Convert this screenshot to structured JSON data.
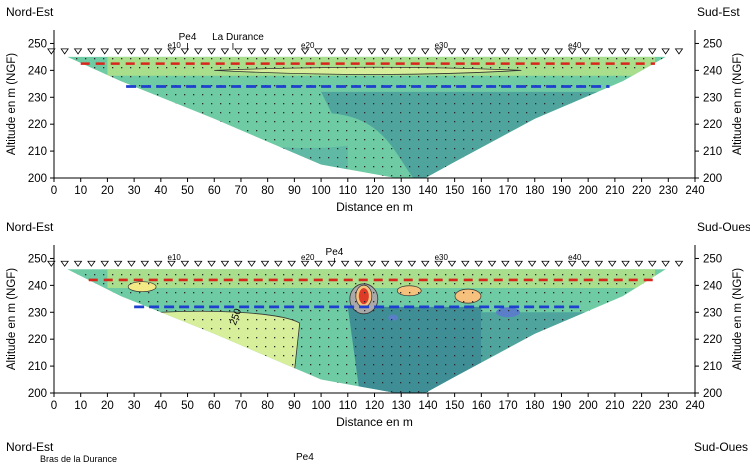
{
  "chart_data": [
    {
      "type": "heatmap",
      "left_label": "Nord-Est",
      "right_label": "Sud-Est",
      "xlabel": "Distance en m",
      "ylabel": "Altitude en m (NGF)",
      "xlim": [
        0,
        240
      ],
      "ylim": [
        200,
        255
      ],
      "x_ticks": [
        0,
        10,
        20,
        30,
        40,
        50,
        60,
        70,
        80,
        90,
        100,
        110,
        120,
        130,
        140,
        150,
        160,
        170,
        180,
        190,
        200,
        210,
        220,
        230,
        240
      ],
      "y_ticks": [
        200,
        210,
        220,
        230,
        240,
        250
      ],
      "electrode_labels": [
        {
          "text": "e10",
          "x": 45
        },
        {
          "text": "e20",
          "x": 95
        },
        {
          "text": "e30",
          "x": 145
        },
        {
          "text": "e40",
          "x": 195
        }
      ],
      "annotations": [
        {
          "text": "Pe4",
          "x": 50
        },
        {
          "text": "La Durance",
          "x": 67
        }
      ],
      "contour_labels": [],
      "red_line": {
        "x": [
          10,
          225
        ],
        "y": 242.5
      },
      "blue_line": {
        "x": [
          27,
          208
        ],
        "y": 234
      }
    },
    {
      "type": "heatmap",
      "left_label": "Nord-Est",
      "right_label": "Sud-Oues",
      "xlabel": "Distance en m",
      "ylabel": "Altitude en m (NGF)",
      "xlim": [
        0,
        240
      ],
      "ylim": [
        200,
        255
      ],
      "x_ticks": [
        0,
        10,
        20,
        30,
        40,
        50,
        60,
        70,
        80,
        90,
        100,
        110,
        120,
        130,
        140,
        150,
        160,
        170,
        180,
        190,
        200,
        210,
        220,
        230,
        240
      ],
      "y_ticks": [
        200,
        210,
        220,
        230,
        240,
        250
      ],
      "electrode_labels": [
        {
          "text": "e10",
          "x": 45
        },
        {
          "text": "e20",
          "x": 95
        },
        {
          "text": "e30",
          "x": 145
        },
        {
          "text": "e40",
          "x": 195
        }
      ],
      "annotations": [
        {
          "text": "Pe4",
          "x": 105
        }
      ],
      "contour_labels": [
        {
          "text": "250",
          "x": 68,
          "y": 225
        }
      ],
      "red_line": {
        "x": [
          13,
          225
        ],
        "y": 242
      },
      "blue_line": {
        "x": [
          30,
          198
        ],
        "y": 232
      }
    }
  ],
  "bottom_strip": {
    "left_label": "Nord-Est",
    "right_label": "Sud-Oues",
    "annotation_1": "Bras de la Durance",
    "annotation_2": "Pe4"
  }
}
